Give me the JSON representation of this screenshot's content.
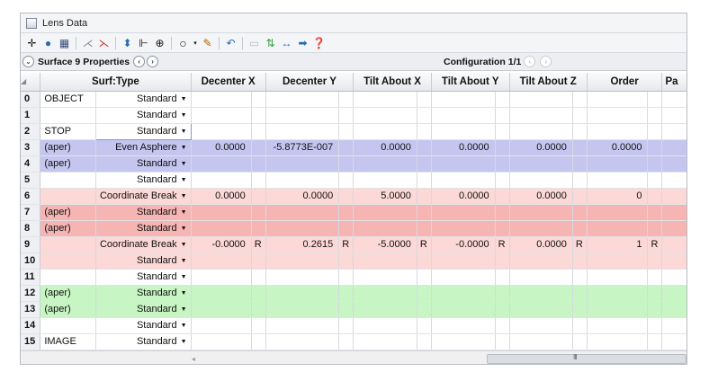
{
  "window": {
    "title": "Lens Data"
  },
  "toolbar": {
    "icons": [
      "move-crosshair-icon",
      "globe-icon",
      "book-icon",
      "split-icon",
      "split-red-icon",
      "tool-a-icon",
      "tool-b-icon",
      "tool-c-icon",
      "circle-icon",
      "dropdown-icon",
      "edit-icon",
      "undo-icon",
      "blank-icon",
      "swap-icon",
      "arrows-lr-icon",
      "arrow-right-icon",
      "help-icon"
    ]
  },
  "propbar": {
    "surface_props_label": "Surface 9 Properties",
    "configuration_label": "Configuration 1/1"
  },
  "columns": [
    "Surf:Type",
    "Decenter X",
    "Decenter Y",
    "Tilt About X",
    "Tilt About Y",
    "Tilt About Z",
    "Order",
    "Pa"
  ],
  "rows": [
    {
      "idx": "0",
      "comment": "OBJECT",
      "type": "Standard",
      "color": "white",
      "cells": [
        "",
        "",
        "",
        "",
        "",
        ""
      ],
      "solves": [
        "",
        "",
        "",
        "",
        "",
        ""
      ]
    },
    {
      "idx": "1",
      "comment": "",
      "type": "Standard",
      "color": "white",
      "cells": [
        "",
        "",
        "",
        "",
        "",
        ""
      ],
      "solves": [
        "",
        "",
        "",
        "",
        "",
        ""
      ]
    },
    {
      "idx": "2",
      "comment": "STOP",
      "type": "Standard",
      "color": "white",
      "cells": [
        "",
        "",
        "",
        "",
        "",
        ""
      ],
      "solves": [
        "",
        "",
        "",
        "",
        "",
        ""
      ]
    },
    {
      "idx": "3",
      "comment": "(aper)",
      "type": "Even Asphere",
      "color": "blue",
      "cells": [
        "0.0000",
        "-5.8773E-007",
        "0.0000",
        "0.0000",
        "0.0000",
        "0.0000"
      ],
      "solves": [
        "",
        "",
        "",
        "",
        "",
        ""
      ]
    },
    {
      "idx": "4",
      "comment": "(aper)",
      "type": "Standard",
      "color": "blue",
      "cells": [
        "",
        "",
        "",
        "",
        "",
        ""
      ],
      "solves": [
        "",
        "",
        "",
        "",
        "",
        ""
      ]
    },
    {
      "idx": "5",
      "comment": "",
      "type": "Standard",
      "color": "white",
      "cells": [
        "",
        "",
        "",
        "",
        "",
        ""
      ],
      "solves": [
        "",
        "",
        "",
        "",
        "",
        ""
      ]
    },
    {
      "idx": "6",
      "comment": "",
      "type": "Coordinate Break",
      "color": "pink",
      "cells": [
        "0.0000",
        "0.0000",
        "5.0000",
        "0.0000",
        "0.0000",
        "0"
      ],
      "solves": [
        "",
        "",
        "",
        "",
        "",
        ""
      ]
    },
    {
      "idx": "7",
      "comment": "(aper)",
      "type": "Standard",
      "color": "red",
      "cells": [
        "",
        "",
        "",
        "",
        "",
        ""
      ],
      "solves": [
        "",
        "",
        "",
        "",
        "",
        ""
      ]
    },
    {
      "idx": "8",
      "comment": "(aper)",
      "type": "Standard",
      "color": "red",
      "cells": [
        "",
        "",
        "",
        "",
        "",
        ""
      ],
      "solves": [
        "",
        "",
        "",
        "",
        "",
        ""
      ]
    },
    {
      "idx": "9",
      "comment": "",
      "type": "Coordinate Break",
      "color": "pink",
      "cells": [
        "-0.0000",
        "0.2615",
        "-5.0000",
        "-0.0000",
        "0.0000",
        "1"
      ],
      "solves": [
        "R",
        "R",
        "R",
        "R",
        "R",
        "R"
      ]
    },
    {
      "idx": "10",
      "comment": "",
      "type": "Standard",
      "color": "pink",
      "cells": [
        "",
        "",
        "",
        "",
        "",
        ""
      ],
      "solves": [
        "",
        "",
        "",
        "",
        "",
        ""
      ]
    },
    {
      "idx": "11",
      "comment": "",
      "type": "Standard",
      "color": "white",
      "cells": [
        "",
        "",
        "",
        "",
        "",
        ""
      ],
      "solves": [
        "",
        "",
        "",
        "",
        "",
        ""
      ]
    },
    {
      "idx": "12",
      "comment": "(aper)",
      "type": "Standard",
      "color": "green",
      "cells": [
        "",
        "",
        "",
        "",
        "",
        ""
      ],
      "solves": [
        "",
        "",
        "",
        "",
        "",
        ""
      ]
    },
    {
      "idx": "13",
      "comment": "(aper)",
      "type": "Standard",
      "color": "green",
      "cells": [
        "",
        "",
        "",
        "",
        "",
        ""
      ],
      "solves": [
        "",
        "",
        "",
        "",
        "",
        ""
      ]
    },
    {
      "idx": "14",
      "comment": "",
      "type": "Standard",
      "color": "white",
      "cells": [
        "",
        "",
        "",
        "",
        "",
        ""
      ],
      "solves": [
        "",
        "",
        "",
        "",
        "",
        ""
      ]
    },
    {
      "idx": "15",
      "comment": "IMAGE",
      "type": "Standard",
      "color": "white",
      "cells": [
        "",
        "",
        "",
        "",
        "",
        ""
      ],
      "solves": [
        "",
        "",
        "",
        "",
        "",
        ""
      ]
    }
  ],
  "colors": {
    "blue_row": "#c5c6ef",
    "pink_row": "#fcd8d6",
    "red_row": "#f6b4b3",
    "green_row": "#c8f5c4"
  },
  "scrollbar": {
    "grip": "III"
  }
}
